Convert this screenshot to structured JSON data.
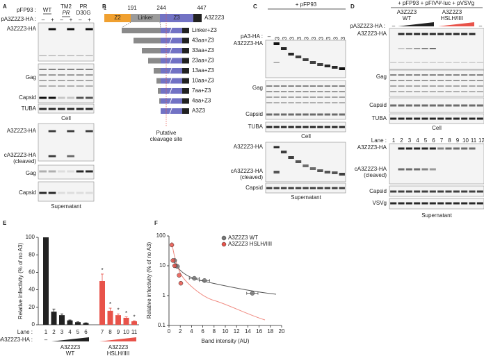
{
  "panel_a": {
    "letter": "A",
    "rows": [
      "pFP93 :",
      "pA3Z2Z3-HA :"
    ],
    "constructs": [
      "WT",
      "TM2",
      "PR",
      "PR",
      "D30G"
    ],
    "signs": [
      "–",
      "+",
      "–",
      "+",
      "–",
      "+"
    ],
    "cell_labels": [
      "A3Z2Z3-HA",
      "Gag",
      "Capsid",
      "TUBA"
    ],
    "cell": "Cell",
    "sup_labels": [
      "A3Z2Z3-HA",
      "cA3Z2Z3-HA",
      "(cleaved)",
      "Gag",
      "Capsid"
    ],
    "sup": "Supernatant"
  },
  "panel_b": {
    "letter": "B",
    "positions": [
      1,
      191,
      244,
      447
    ],
    "domains": [
      "Z2",
      "Linker",
      "Z3",
      "HA"
    ],
    "protein": "A3Z2Z3",
    "constructs": [
      "Linker+Z3",
      "43aa+Z3",
      "33aa+Z3",
      "23aa+Z3",
      "13aa+Z3",
      "10aa+Z3",
      "7aa+Z3",
      "4aa+Z3",
      "A3Z3"
    ],
    "note": [
      "Putative",
      "cleavage site"
    ]
  },
  "panel_c": {
    "letter": "C",
    "header": "+ pFP93",
    "row": "pA3-HA :",
    "control": "–",
    "lanes": [
      "A3Z2Z3",
      "Linker+Z3",
      "43aa+Z3",
      "33aa+Z3",
      "23aa+Z3",
      "13aa+Z3",
      "10aa+Z3",
      "7aa+Z3",
      "4aa+Z3",
      "A3Z3"
    ],
    "cell_labels": [
      "A3Z2Z3-HA",
      "Gag",
      "Capsid",
      "TUBA"
    ],
    "cell": "Cell",
    "sup_labels": [
      "A3Z2Z3-HA",
      "cA3Z2Z3-HA",
      "(cleaved)",
      "Capsid"
    ],
    "sup": "Supernatant"
  },
  "panel_d": {
    "letter": "D",
    "header": "+ pFP93 + pFIVΨ-luc + pVSVg",
    "groups": [
      [
        "A3Z2Z3",
        "WT"
      ],
      [
        "A3Z2Z3",
        "HSLH/IIII"
      ]
    ],
    "row": "pA3Z2Z3-HA :",
    "control": [
      "–",
      "–"
    ],
    "cell_labels": [
      "A3Z2Z3-HA",
      "Gag",
      "Capsid",
      "TUBA"
    ],
    "cell": "Cell",
    "lane_label": "Lane :",
    "lanes": [
      1,
      2,
      3,
      4,
      5,
      6,
      7,
      8,
      9,
      10,
      11,
      12
    ],
    "sup_labels": [
      "A3Z2Z3-HA",
      "cA3Z2Z3-HA",
      "(cleaved)",
      "Capsid",
      "VSVg"
    ],
    "sup": "Supernatant"
  },
  "chart_data": [
    {
      "type": "bar",
      "letter": "E",
      "ylabel": "Relative infectivity (% of no A3)",
      "categories": [
        "1",
        "2",
        "3",
        "4",
        "5",
        "6",
        "7",
        "8",
        "9",
        "10",
        "11"
      ],
      "values": [
        100,
        15,
        11,
        5,
        3,
        2,
        50,
        16,
        11,
        8,
        4
      ],
      "errors": [
        null,
        3,
        1.5,
        0.5,
        0.4,
        0.3,
        8,
        3,
        1.5,
        1,
        0.5
      ],
      "colors": [
        "#222",
        "#222",
        "#222",
        "#222",
        "#222",
        "#222",
        "#e8534a",
        "#e8534a",
        "#e8534a",
        "#e8534a",
        "#e8534a"
      ],
      "tick_colors": [
        "#222",
        "#999",
        "#999",
        "#999",
        "#999",
        "#999",
        "#e8534a",
        "#e8534a",
        "#e8534a",
        "#e8534a",
        "#e8534a"
      ],
      "significance": [
        null,
        null,
        null,
        null,
        null,
        null,
        "*",
        "*",
        "*",
        "*",
        "*"
      ],
      "ylim": [
        0,
        100
      ],
      "yticks": [
        0,
        20,
        40,
        60,
        80,
        100
      ],
      "lane_label": "Lane :",
      "row_label": "pA3Z2Z3-HA :",
      "control": "–",
      "groups": [
        {
          "name": "A3Z2Z3",
          "sub": "WT",
          "color": "#222"
        },
        {
          "name": "A3Z2Z3",
          "sub": "HSLH/IIII",
          "color": "#e8534a"
        }
      ]
    },
    {
      "type": "scatter",
      "letter": "F",
      "xlabel": "Band intensity (AU)",
      "ylabel": "Relative infectivity (% of no A3)",
      "log_y": true,
      "xlim": [
        0,
        20
      ],
      "xticks": [
        0,
        2,
        4,
        6,
        8,
        10,
        12,
        14,
        16,
        18,
        20
      ],
      "ylim": [
        0.1,
        100
      ],
      "yticks": [
        0.1,
        1,
        10,
        100
      ],
      "series": [
        {
          "name": "A3Z2Z3 WT",
          "color": "#777",
          "x": [
            1,
            1.2,
            1.5,
            4.5,
            6.3,
            14.8
          ],
          "values": [
            15,
            10,
            9.5,
            3.8,
            3.2,
            1.2
          ],
          "xerr": [
            null,
            null,
            null,
            0.9,
            0.9,
            1
          ]
        },
        {
          "name": "A3Z2Z3 HSLH/IIII",
          "color": "#e8534a",
          "x": [
            0.5,
            0.7,
            1,
            1.8,
            2.1
          ],
          "values": [
            50,
            15,
            10,
            4.8,
            2.6
          ],
          "xerr": [
            null,
            null,
            null,
            null,
            null
          ]
        }
      ]
    }
  ]
}
